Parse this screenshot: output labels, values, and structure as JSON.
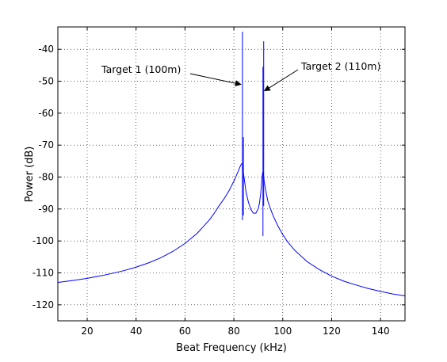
{
  "chart_data": {
    "type": "line",
    "xlabel": "Beat Frequency (kHz)",
    "ylabel": "Power (dB)",
    "xlim": [
      8,
      150
    ],
    "ylim": [
      -125,
      -33
    ],
    "xticks": [
      20,
      40,
      60,
      80,
      100,
      120,
      140
    ],
    "yticks": [
      -40,
      -50,
      -60,
      -70,
      -80,
      -90,
      -100,
      -110,
      -120
    ],
    "grid": true,
    "line_color": "#0000ff",
    "annotations": [
      {
        "text": "Target 1 (100m)",
        "x": 83.5,
        "y": -51
      },
      {
        "text": "Target 2 (110m)",
        "x": 91.9,
        "y": -53
      }
    ],
    "series": [
      {
        "x": [
          8,
          10,
          15,
          20,
          25,
          30,
          35,
          40,
          45,
          50,
          55,
          60,
          65,
          70,
          72,
          74,
          76,
          78,
          79,
          80,
          81,
          82,
          82.5,
          83,
          83.3,
          83.5,
          83.7,
          84,
          84.5,
          85,
          86,
          87,
          88,
          89,
          90,
          90.5,
          91,
          91.4,
          91.7,
          91.9,
          92.1,
          92.4,
          93,
          93.5,
          94,
          95,
          96,
          98,
          100,
          102,
          105,
          110,
          115,
          120,
          125,
          130,
          135,
          140,
          145,
          150
        ],
        "y": [
          -113,
          -112.8,
          -112.3,
          -111.7,
          -111.0,
          -110.2,
          -109.3,
          -108.2,
          -106.9,
          -105.3,
          -103.3,
          -100.8,
          -97.6,
          -93.4,
          -91.3,
          -88.9,
          -86.8,
          -84.3,
          -82.8,
          -81.3,
          -79.5,
          -77.8,
          -76.8,
          -76.0,
          -75.8,
          -76.0,
          -77.0,
          -79.2,
          -82.0,
          -84.8,
          -88.0,
          -90.2,
          -91.3,
          -91.3,
          -89.8,
          -88.0,
          -85.0,
          -81.3,
          -79.0,
          -78.5,
          -79.0,
          -81.3,
          -84.0,
          -86.0,
          -87.8,
          -90.0,
          -92.0,
          -95.3,
          -98.0,
          -100.3,
          -103.0,
          -106.5,
          -109.0,
          -111.0,
          -112.6,
          -113.8,
          -114.9,
          -115.8,
          -116.6,
          -117.2
        ]
      },
      {
        "x": [
          83.5,
          83.5
        ],
        "y": [
          -93.5,
          -34.5
        ]
      },
      {
        "x": [
          83.9,
          83.9
        ],
        "y": [
          -92,
          -67.5
        ]
      },
      {
        "x": [
          91.9,
          91.9
        ],
        "y": [
          -98.5,
          -45.5
        ]
      },
      {
        "x": [
          92.2,
          92.2
        ],
        "y": [
          -89,
          -37.5
        ]
      }
    ]
  }
}
